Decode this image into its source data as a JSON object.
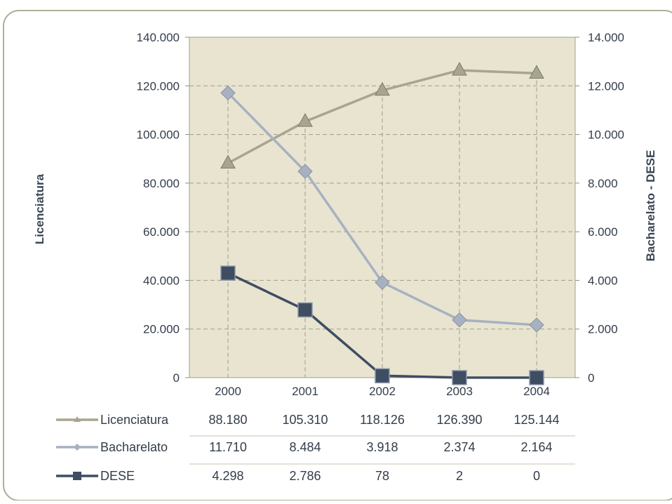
{
  "chart_data": {
    "type": "line",
    "title": "",
    "categories": [
      "2000",
      "2001",
      "2002",
      "2003",
      "2004"
    ],
    "y_left": {
      "label": "Licenciatura",
      "range": [
        0,
        140000
      ],
      "ticks": [
        "0",
        "20.000",
        "40.000",
        "60.000",
        "80.000",
        "100.000",
        "120.000",
        "140.000"
      ]
    },
    "y_right": {
      "label": "Bacharelato - DESE",
      "range": [
        0,
        14000
      ],
      "ticks": [
        "0",
        "2.000",
        "4.000",
        "6.000",
        "8.000",
        "10.000",
        "12.000",
        "14.000"
      ]
    },
    "grid": true,
    "legend_placement": "data-table below chart",
    "series": [
      {
        "name": "Licenciatura",
        "axis": "left",
        "marker": "triangle",
        "color": "#a8a58e",
        "values": [
          88180,
          105310,
          118126,
          126390,
          125144
        ],
        "labels": [
          "88.180",
          "105.310",
          "118.126",
          "126.390",
          "125.144"
        ]
      },
      {
        "name": "Bacharelato",
        "axis": "right",
        "marker": "diamond",
        "color": "#a7b1c1",
        "values": [
          11710,
          8484,
          3918,
          2374,
          2164
        ],
        "labels": [
          "11.710",
          "8.484",
          "3.918",
          "2.374",
          "2.164"
        ]
      },
      {
        "name": "DESE",
        "axis": "right",
        "marker": "square",
        "color": "#3f4d62",
        "values": [
          4298,
          2786,
          78,
          2,
          0
        ],
        "labels": [
          "4.298",
          "2.786",
          "78",
          "2",
          "0"
        ]
      }
    ]
  },
  "colors": {
    "plot_background": "#e8e4d0",
    "frame_border": "#b0ae98",
    "grid": "#9f9d8c",
    "text": "#333d4a"
  }
}
